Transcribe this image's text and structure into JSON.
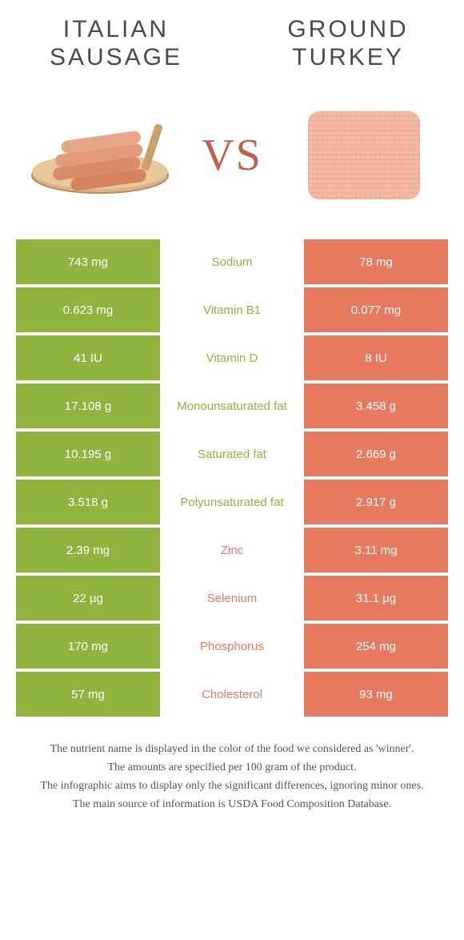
{
  "colors": {
    "green": "#8fb53f",
    "orange": "#e77a5e",
    "vs_text": "#c06048",
    "title_text": "#4a4a4a",
    "footer_text": "#555555",
    "background": "#ffffff"
  },
  "header": {
    "left_title": "ITALIAN SAUSAGE",
    "right_title": "GROUND TURKEY",
    "vs": "VS"
  },
  "rows": [
    {
      "left": "743 mg",
      "label": "Sodium",
      "right": "78 mg",
      "winner": "left"
    },
    {
      "left": "0.623 mg",
      "label": "Vitamin B1",
      "right": "0.077 mg",
      "winner": "left"
    },
    {
      "left": "41 IU",
      "label": "Vitamin D",
      "right": "8 IU",
      "winner": "left"
    },
    {
      "left": "17.108 g",
      "label": "Monounsaturated fat",
      "right": "3.458 g",
      "winner": "left"
    },
    {
      "left": "10.195 g",
      "label": "Saturated fat",
      "right": "2.669 g",
      "winner": "left"
    },
    {
      "left": "3.518 g",
      "label": "Polyunsaturated fat",
      "right": "2.917 g",
      "winner": "left"
    },
    {
      "left": "2.39 mg",
      "label": "Zinc",
      "right": "3.11 mg",
      "winner": "right"
    },
    {
      "left": "22 µg",
      "label": "Selenium",
      "right": "31.1 µg",
      "winner": "right"
    },
    {
      "left": "170 mg",
      "label": "Phosphorus",
      "right": "254 mg",
      "winner": "right"
    },
    {
      "left": "57 mg",
      "label": "Cholesterol",
      "right": "93 mg",
      "winner": "right"
    }
  ],
  "footer": {
    "l1": "The nutrient name is displayed in the color of the food we considered as 'winner'.",
    "l2": "The amounts are specified per 100 gram of the product.",
    "l3": "The infographic aims to display only the significant differences, ignoring minor ones.",
    "l4": "The main source of information is USDA Food Composition Database."
  }
}
